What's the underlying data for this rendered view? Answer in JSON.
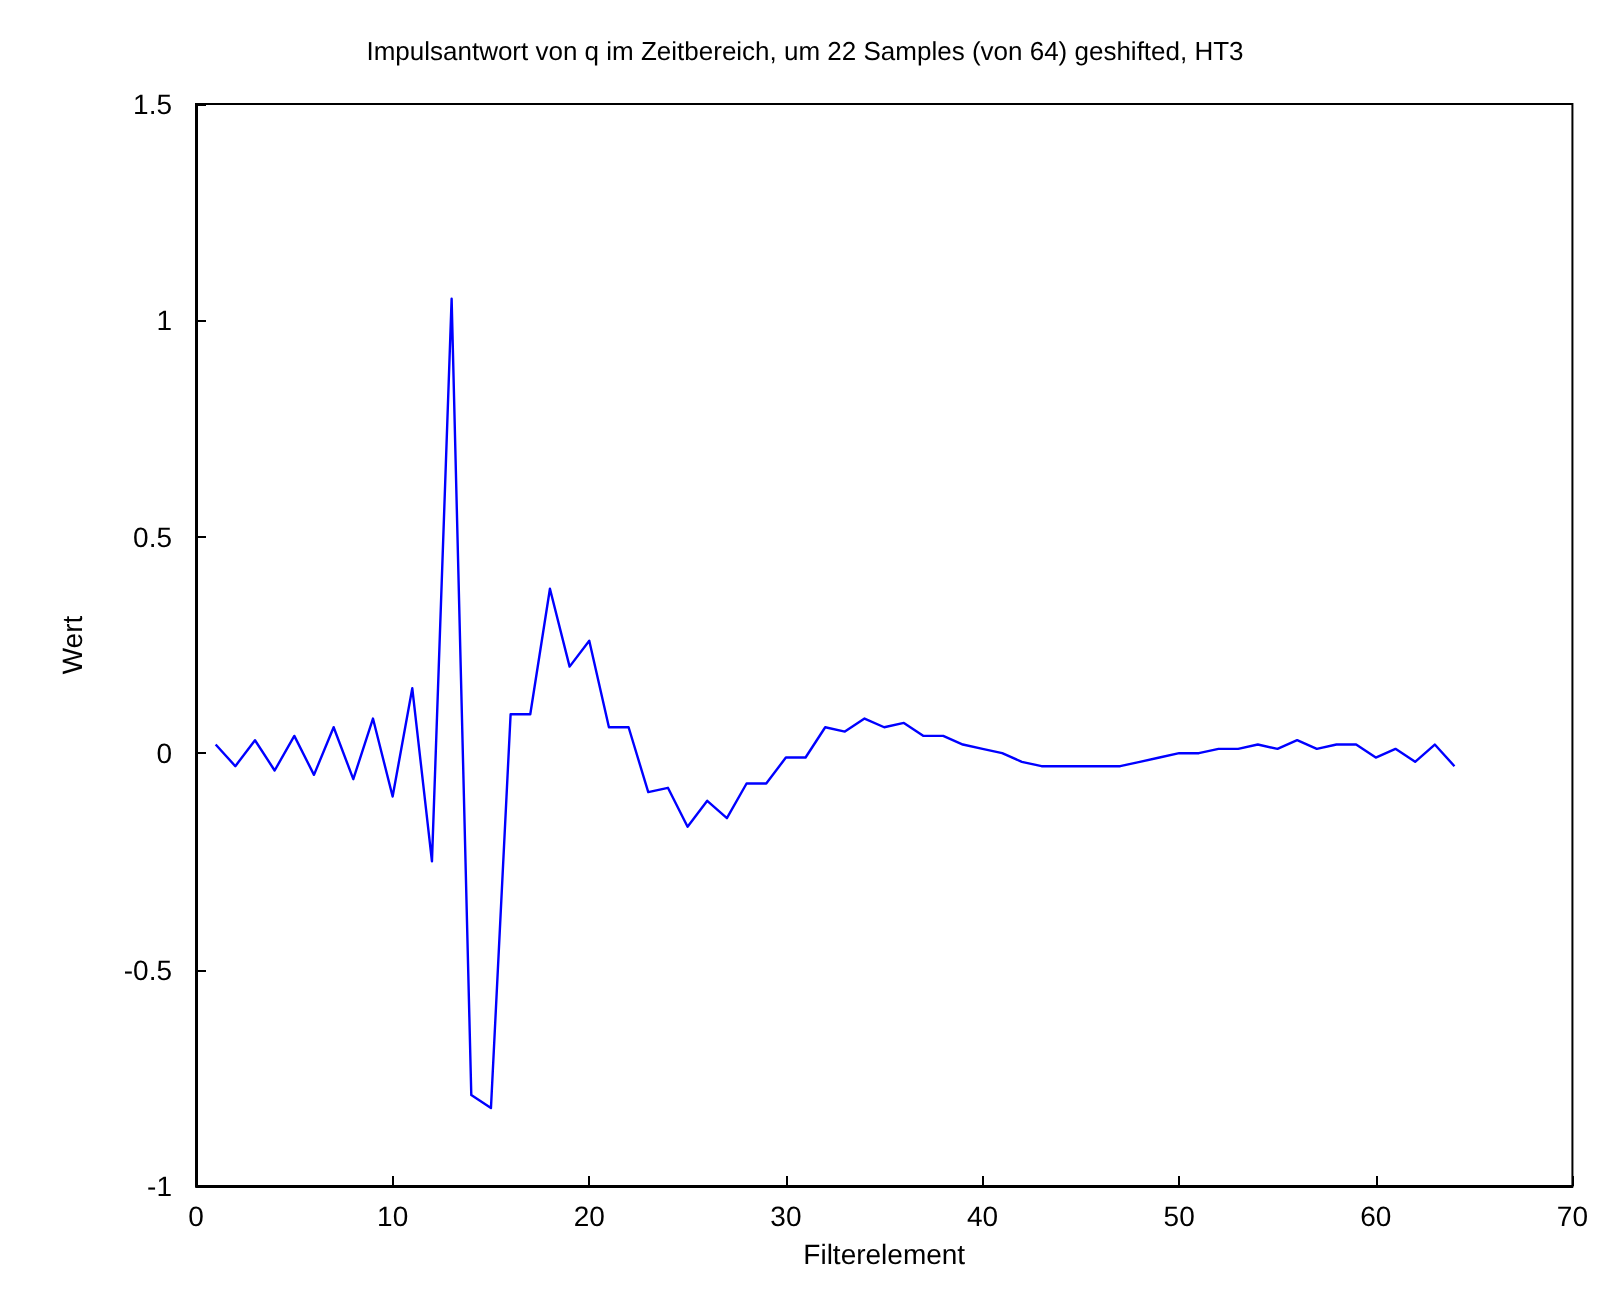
{
  "chart_data": {
    "type": "line",
    "title": "Impulsantwort von q im Zeitbereich, um 22 Samples (von 64) geshifted, HT3",
    "xlabel": "Filterelement",
    "ylabel": "Wert",
    "x": [
      1,
      2,
      3,
      4,
      5,
      6,
      7,
      8,
      9,
      10,
      11,
      12,
      13,
      14,
      15,
      16,
      17,
      18,
      19,
      20,
      21,
      22,
      23,
      24,
      25,
      26,
      27,
      28,
      29,
      30,
      31,
      32,
      33,
      34,
      35,
      36,
      37,
      38,
      39,
      40,
      41,
      42,
      43,
      44,
      45,
      46,
      47,
      48,
      49,
      50,
      51,
      52,
      53,
      54,
      55,
      56,
      57,
      58,
      59,
      60,
      61,
      62,
      63,
      64
    ],
    "series": [
      {
        "color": "#0000ff",
        "values": [
          0.02,
          -0.03,
          0.03,
          -0.04,
          0.04,
          -0.05,
          0.06,
          -0.06,
          0.08,
          -0.1,
          0.15,
          -0.25,
          1.05,
          -0.79,
          -0.82,
          0.09,
          0.09,
          0.38,
          0.2,
          0.26,
          0.06,
          0.06,
          -0.09,
          -0.08,
          -0.17,
          -0.11,
          -0.15,
          -0.07,
          -0.07,
          -0.01,
          -0.01,
          0.06,
          0.05,
          0.08,
          0.06,
          0.07,
          0.04,
          0.04,
          0.02,
          0.01,
          0,
          -0.02,
          -0.03,
          -0.03,
          -0.03,
          -0.03,
          -0.03,
          -0.02,
          -0.01,
          0,
          0,
          0.01,
          0.01,
          0.02,
          0.01,
          0.03,
          0.01,
          0.02,
          0.02,
          -0.01,
          0.01,
          -0.02,
          0.02,
          -0.03
        ]
      }
    ],
    "xlim": [
      0,
      70
    ],
    "xticks": [
      0,
      10,
      20,
      30,
      40,
      50,
      60,
      70
    ],
    "ylim": [
      -1,
      1.5
    ],
    "yticks": [
      -1,
      -0.5,
      0,
      0.5,
      1,
      1.5
    ],
    "grid": false,
    "marker": "none",
    "line_style": "solid"
  }
}
